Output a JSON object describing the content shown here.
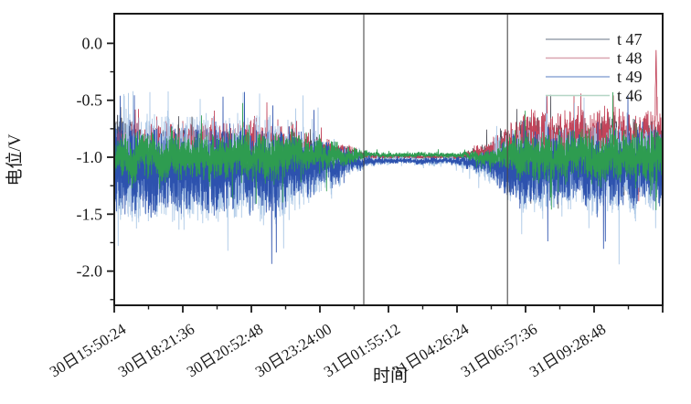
{
  "chart_data": {
    "type": "line",
    "title": "",
    "xlabel": "时间",
    "ylabel": "电位/V",
    "x_tick_labels": [
      "30日15:50:24",
      "30日18:21:36",
      "30日20:52:48",
      "30日23:24:00",
      "31日01:55:12",
      "31日04:26:24",
      "31日06:57:36",
      "31日09:28:48"
    ],
    "y_tick_values": [
      0.0,
      -0.5,
      -1.0,
      -1.5,
      -2.0
    ],
    "y_minor_values": [
      -0.25,
      -0.75,
      -1.25,
      -1.75,
      -2.25
    ],
    "ylim": [
      -2.3,
      0.26
    ],
    "grid": false,
    "background_color": "#ffffff",
    "axis_color": "#1a1a1a",
    "legend": {
      "position": "top-right",
      "entries": [
        {
          "label": "t 47",
          "swatch_color": "#9aa2ae"
        },
        {
          "label": "t 48",
          "swatch_color": "#d9a3b0"
        },
        {
          "label": "t 49",
          "swatch_color": "#8fa9d6"
        },
        {
          "label": "t 46",
          "swatch_color": "#b5d6c6"
        }
      ]
    },
    "vertical_marker_lines": [
      {
        "x_frac": 0.455,
        "color": "#4a4a4a"
      },
      {
        "x_frac": 0.717,
        "color": "#4a4a4a"
      }
    ],
    "series_note": "four noisy potential traces, high noise before first marker line and after second marker line, flat quiet band near -1.0 V between marker lines; envelope points are [x_frac, mean_V, amplitude_V]",
    "series": [
      {
        "name": "t 47",
        "color": "#4f4f58",
        "envelope": [
          [
            0,
            -0.82,
            0.24
          ],
          [
            0.05,
            -0.9,
            0.16
          ],
          [
            0.32,
            -0.95,
            0.13
          ],
          [
            0.43,
            -0.98,
            0.05
          ],
          [
            0.47,
            -0.995,
            0.015
          ],
          [
            0.63,
            -0.995,
            0.018
          ],
          [
            0.69,
            -0.96,
            0.1
          ],
          [
            0.74,
            -0.93,
            0.24
          ],
          [
            1,
            -0.92,
            0.26
          ]
        ]
      },
      {
        "name": "t 48",
        "color": "#c2445a",
        "envelope": [
          [
            0,
            -0.88,
            0.2
          ],
          [
            0.3,
            -0.89,
            0.18
          ],
          [
            0.42,
            -0.96,
            0.07
          ],
          [
            0.47,
            -1.0,
            0.008
          ],
          [
            0.63,
            -1.0,
            0.012
          ],
          [
            0.69,
            -0.94,
            0.1
          ],
          [
            0.74,
            -0.87,
            0.26
          ],
          [
            1,
            -0.86,
            0.28
          ]
        ]
      },
      {
        "name": "t 49",
        "color": "#2d52ae",
        "halo_color": "#a9c6e6",
        "envelope": [
          [
            0,
            -1.1,
            0.38
          ],
          [
            0.3,
            -1.1,
            0.36
          ],
          [
            0.4,
            -1.06,
            0.16
          ],
          [
            0.455,
            -1.04,
            0.045
          ],
          [
            0.5,
            -1.03,
            0.022
          ],
          [
            0.62,
            -1.03,
            0.03
          ],
          [
            0.68,
            -1.06,
            0.1
          ],
          [
            0.73,
            -1.1,
            0.3
          ],
          [
            1,
            -1.1,
            0.32
          ]
        ]
      },
      {
        "name": "t 46",
        "color": "#2e9c50",
        "envelope": [
          [
            0,
            -0.99,
            0.21
          ],
          [
            0.32,
            -0.99,
            0.2
          ],
          [
            0.42,
            -0.99,
            0.09
          ],
          [
            0.47,
            -0.98,
            0.02
          ],
          [
            0.63,
            -0.98,
            0.024
          ],
          [
            0.69,
            -1.0,
            0.09
          ],
          [
            0.74,
            -1.0,
            0.2
          ],
          [
            1,
            -1.0,
            0.22
          ]
        ]
      }
    ],
    "events": [
      {
        "series": "t 48",
        "x_frac": 0.988,
        "peak_value": -0.03,
        "note": "tall red spike near right edge reaching almost 0.0 V"
      }
    ]
  }
}
